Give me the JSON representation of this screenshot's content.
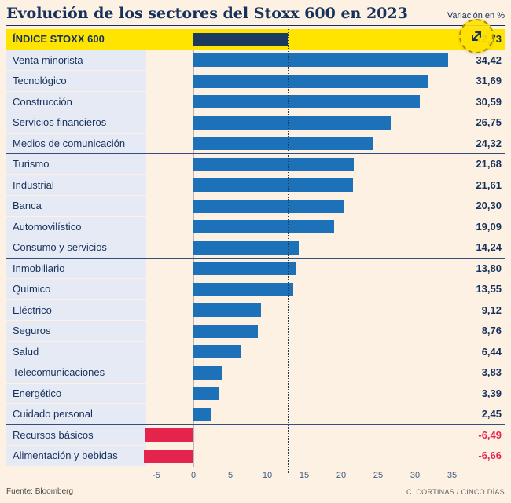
{
  "header": {
    "title": "Evolución de los sectores del Stoxx 600 en 2023",
    "unit_label": "Variación en %"
  },
  "chart_data": {
    "type": "bar",
    "orientation": "horizontal",
    "title": "Evolución de los sectores del Stoxx 600 en 2023",
    "value_unit": "Variación en %",
    "xlim": [
      -5,
      35
    ],
    "xticks": [
      -5,
      0,
      5,
      10,
      15,
      20,
      25,
      30,
      35
    ],
    "grid": false,
    "reference_line_value": 12.73,
    "rows": [
      {
        "label": "ÍNDICE STOXX 600",
        "value": 12.73,
        "display": "12,73",
        "highlight": true
      },
      {
        "label": "Venta minorista",
        "value": 34.42,
        "display": "34,42"
      },
      {
        "label": "Tecnológico",
        "value": 31.69,
        "display": "31,69"
      },
      {
        "label": "Construcción",
        "value": 30.59,
        "display": "30,59"
      },
      {
        "label": "Servicios financieros",
        "value": 26.75,
        "display": "26,75"
      },
      {
        "label": "Medios de comunicación",
        "value": 24.32,
        "display": "24,32",
        "group_end": true
      },
      {
        "label": "Turismo",
        "value": 21.68,
        "display": "21,68"
      },
      {
        "label": "Industrial",
        "value": 21.61,
        "display": "21,61"
      },
      {
        "label": "Banca",
        "value": 20.3,
        "display": "20,30"
      },
      {
        "label": "Automovilístico",
        "value": 19.09,
        "display": "19,09"
      },
      {
        "label": "Consumo y servicios",
        "value": 14.24,
        "display": "14,24",
        "group_end": true
      },
      {
        "label": "Inmobiliario",
        "value": 13.8,
        "display": "13,80"
      },
      {
        "label": "Químico",
        "value": 13.55,
        "display": "13,55"
      },
      {
        "label": "Eléctrico",
        "value": 9.12,
        "display": "9,12"
      },
      {
        "label": "Seguros",
        "value": 8.76,
        "display": "8,76"
      },
      {
        "label": "Salud",
        "value": 6.44,
        "display": "6,44",
        "group_end": true
      },
      {
        "label": "Telecomunicaciones",
        "value": 3.83,
        "display": "3,83"
      },
      {
        "label": "Energético",
        "value": 3.39,
        "display": "3,39"
      },
      {
        "label": "Cuidado personal",
        "value": 2.45,
        "display": "2,45",
        "group_end": true
      },
      {
        "label": "Recursos básicos",
        "value": -6.49,
        "display": "-6,49"
      },
      {
        "label": "Alimentación y bebidas",
        "value": -6.66,
        "display": "-6,66"
      }
    ]
  },
  "footer": {
    "source": "Fuente: Bloomberg",
    "credit": "C. CORTINAS / CINCO DÍAS"
  },
  "icons": {
    "zoom": "expand-diagonal-arrows"
  },
  "colors": {
    "bg": "#fcf1e2",
    "label_bg": "#e6eaf5",
    "bar_blue": "#1d71b8",
    "bar_navy": "#1b3a5e",
    "bar_red": "#e5244e",
    "yellow": "#ffe400",
    "navy": "#16325c"
  }
}
